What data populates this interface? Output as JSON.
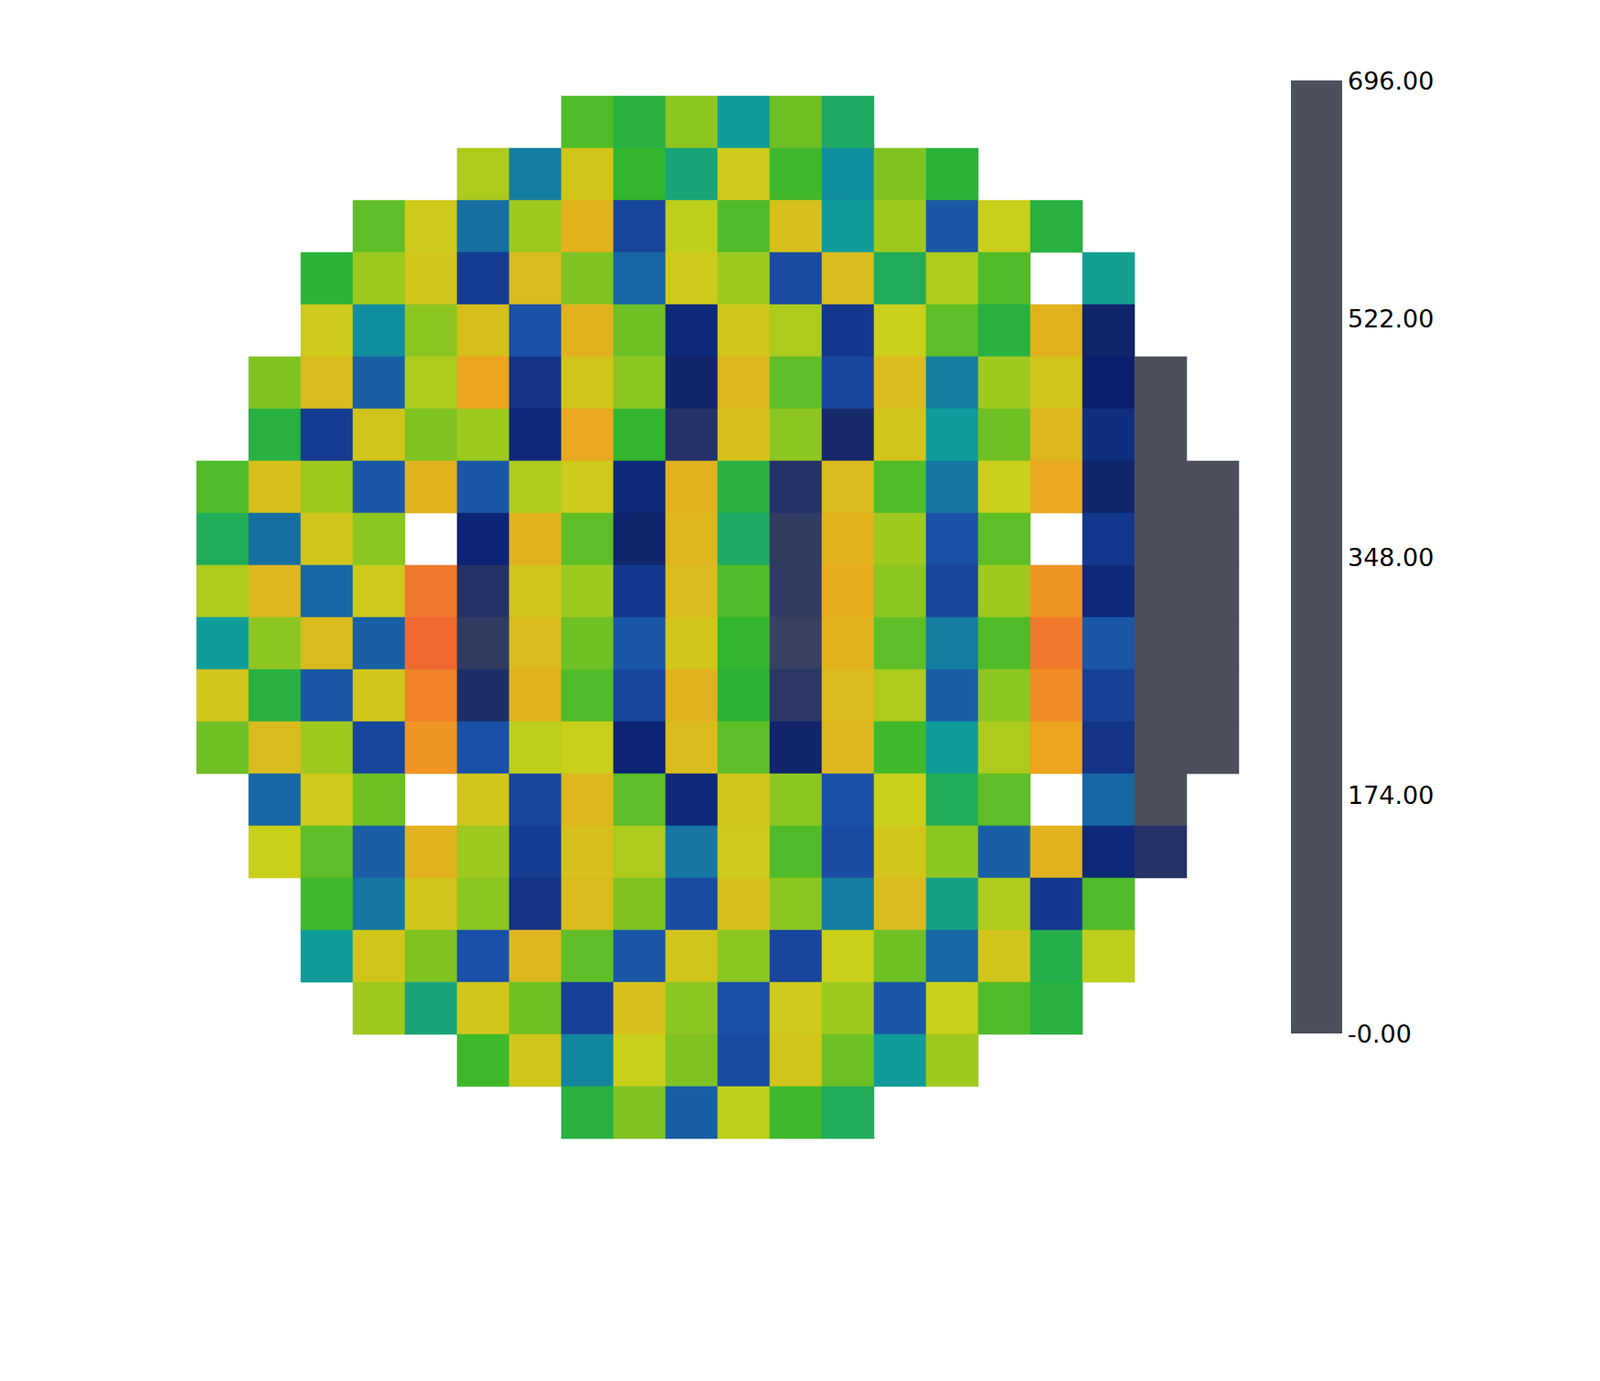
{
  "chart_data": {
    "type": "heatmap",
    "cells": [
      [
        null,
        null,
        null,
        null,
        null,
        null,
        null,
        420,
        380,
        460,
        300,
        440,
        350,
        null,
        null,
        null,
        null,
        null,
        null,
        null
      ],
      [
        null,
        null,
        null,
        null,
        null,
        480,
        260,
        520,
        400,
        330,
        510,
        410,
        280,
        450,
        390,
        null,
        null,
        null,
        null,
        null
      ],
      [
        null,
        null,
        null,
        430,
        510,
        240,
        470,
        560,
        180,
        490,
        420,
        530,
        300,
        470,
        210,
        500,
        380,
        null,
        null,
        null
      ],
      [
        null,
        null,
        390,
        470,
        520,
        160,
        540,
        450,
        230,
        510,
        470,
        190,
        540,
        360,
        480,
        420,
        null,
        310,
        null,
        null
      ],
      [
        null,
        null,
        510,
        280,
        460,
        530,
        200,
        560,
        440,
        120,
        520,
        480,
        150,
        500,
        430,
        380,
        560,
        90,
        null,
        null
      ],
      [
        null,
        450,
        540,
        220,
        480,
        590,
        140,
        520,
        460,
        90,
        550,
        430,
        180,
        540,
        260,
        470,
        520,
        100,
        0,
        null
      ],
      [
        null,
        380,
        160,
        520,
        450,
        470,
        120,
        580,
        400,
        60,
        530,
        460,
        80,
        520,
        300,
        440,
        550,
        130,
        0,
        null
      ],
      [
        420,
        530,
        470,
        210,
        560,
        210,
        480,
        510,
        120,
        560,
        380,
        60,
        540,
        420,
        250,
        500,
        580,
        90,
        0,
        0
      ],
      [
        360,
        240,
        520,
        460,
        null,
        110,
        560,
        430,
        90,
        550,
        350,
        40,
        560,
        470,
        200,
        430,
        null,
        150,
        0,
        0
      ],
      [
        480,
        550,
        230,
        510,
        640,
        60,
        520,
        470,
        150,
        540,
        420,
        40,
        570,
        460,
        180,
        470,
        610,
        120,
        0,
        0
      ],
      [
        300,
        460,
        540,
        220,
        660,
        40,
        540,
        440,
        210,
        520,
        400,
        30,
        560,
        430,
        260,
        420,
        640,
        210,
        0,
        0
      ],
      [
        520,
        380,
        210,
        520,
        630,
        70,
        560,
        420,
        180,
        560,
        390,
        50,
        540,
        480,
        220,
        460,
        620,
        170,
        0,
        0
      ],
      [
        440,
        540,
        470,
        180,
        610,
        200,
        490,
        500,
        110,
        540,
        430,
        90,
        550,
        410,
        300,
        480,
        590,
        140,
        0,
        0
      ],
      [
        null,
        230,
        510,
        440,
        null,
        520,
        180,
        550,
        430,
        120,
        520,
        460,
        200,
        500,
        360,
        430,
        null,
        230,
        0,
        null
      ],
      [
        null,
        500,
        430,
        220,
        560,
        470,
        160,
        530,
        480,
        250,
        510,
        420,
        190,
        520,
        460,
        220,
        560,
        120,
        60,
        null
      ],
      [
        null,
        null,
        410,
        250,
        520,
        460,
        140,
        540,
        450,
        190,
        530,
        460,
        260,
        540,
        320,
        480,
        150,
        420,
        null,
        null
      ],
      [
        null,
        null,
        300,
        520,
        450,
        200,
        550,
        430,
        210,
        520,
        460,
        180,
        500,
        440,
        230,
        520,
        370,
        490,
        null,
        null
      ],
      [
        null,
        null,
        null,
        470,
        330,
        520,
        440,
        170,
        530,
        460,
        200,
        510,
        470,
        210,
        500,
        420,
        380,
        null,
        null,
        null
      ],
      [
        null,
        null,
        null,
        null,
        null,
        410,
        520,
        270,
        500,
        450,
        190,
        520,
        440,
        300,
        470,
        null,
        null,
        null,
        null,
        null
      ],
      [
        null,
        null,
        null,
        null,
        null,
        null,
        null,
        380,
        450,
        220,
        490,
        410,
        360,
        null,
        null,
        null,
        null,
        null,
        null,
        null
      ]
    ],
    "colorbar": {
      "range": [
        0,
        696
      ],
      "ticks": [
        {
          "value": 0,
          "label": "-0.00"
        },
        {
          "value": 174,
          "label": "174.00"
        },
        {
          "value": 348,
          "label": "348.00"
        },
        {
          "value": 522,
          "label": "522.00"
        },
        {
          "value": 696,
          "label": "696.00"
        }
      ]
    },
    "tick_labels": false
  }
}
